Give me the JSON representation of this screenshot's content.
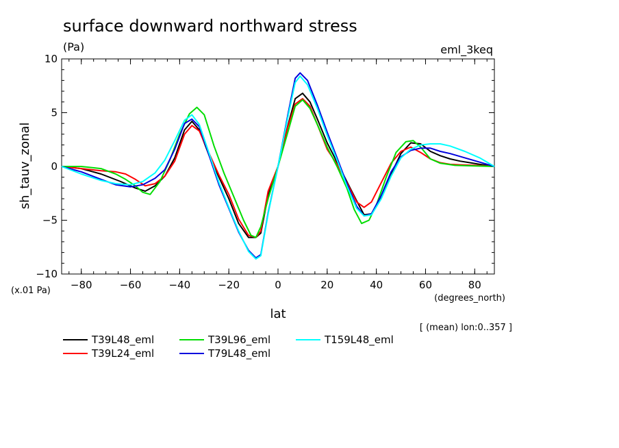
{
  "chart_data": {
    "type": "line",
    "title": "surface downward northward stress",
    "subtitle": "(Pa)",
    "dataset_label": "eml_3keq",
    "ylabel": "sh_tauv_zonal",
    "xlabel": "lat",
    "y_scale_note": "(x.01 Pa)",
    "x_units": "(degrees_north)",
    "region_note": "[ (mean) lon:0..357 ]",
    "xlim": [
      -88,
      88
    ],
    "ylim": [
      -10,
      10
    ],
    "x_ticks": [
      "-80",
      "-60",
      "-40",
      "-20",
      "0",
      "20",
      "40",
      "60",
      "80"
    ],
    "y_ticks": [
      "10",
      "5",
      "0",
      "-5",
      "-10"
    ],
    "x_tick_values": [
      -80,
      -60,
      -40,
      -20,
      0,
      20,
      40,
      60,
      80
    ],
    "y_tick_values": [
      10,
      5,
      0,
      -5,
      -10
    ],
    "x_minor_step": 5,
    "y_minor_step": 1,
    "grid": false,
    "legend_position": "bottom",
    "series": [
      {
        "name": "T39L48_eml",
        "color": "#000000",
        "x": [
          -88,
          -80,
          -72,
          -64,
          -58,
          -54,
          -50,
          -46,
          -42,
          -38,
          -35,
          -32,
          -28,
          -24,
          -20,
          -16,
          -12,
          -9,
          -7,
          -4,
          0,
          4,
          7,
          10,
          13,
          16,
          20,
          24,
          28,
          32,
          35,
          38,
          42,
          46,
          50,
          54,
          58,
          62,
          66,
          70,
          74,
          78,
          82,
          88
        ],
        "y": [
          0,
          -0.2,
          -0.7,
          -1.4,
          -2.0,
          -2.3,
          -1.8,
          -0.9,
          0.8,
          3.4,
          4.2,
          3.4,
          1.0,
          -1.0,
          -3.0,
          -5.3,
          -6.6,
          -6.6,
          -6.2,
          -2.7,
          0,
          3.8,
          6.3,
          6.8,
          6.0,
          4.4,
          2.2,
          0.4,
          -1.4,
          -3.2,
          -4.5,
          -4.4,
          -2.8,
          -0.7,
          1.2,
          2.2,
          2.1,
          1.4,
          1.0,
          0.7,
          0.5,
          0.35,
          0.2,
          0
        ]
      },
      {
        "name": "T39L24_eml",
        "color": "#ff0000",
        "x": [
          -88,
          -80,
          -72,
          -66,
          -62,
          -58,
          -54,
          -50,
          -46,
          -42,
          -38,
          -35,
          -32,
          -28,
          -24,
          -20,
          -16,
          -12,
          -9,
          -7,
          -4,
          0,
          4,
          7,
          10,
          13,
          16,
          20,
          24,
          28,
          32,
          35,
          38,
          42,
          46,
          50,
          54,
          58,
          62,
          66,
          70,
          74,
          80,
          88
        ],
        "y": [
          0,
          -0.2,
          -0.4,
          -0.5,
          -0.7,
          -1.2,
          -1.8,
          -1.6,
          -0.9,
          0.5,
          3.0,
          3.8,
          3.3,
          1.2,
          -0.8,
          -2.6,
          -4.9,
          -6.4,
          -6.6,
          -6.0,
          -2.3,
          0,
          3.7,
          5.8,
          6.3,
          5.6,
          3.9,
          1.6,
          0.2,
          -1.5,
          -3.3,
          -3.8,
          -3.3,
          -1.5,
          0.3,
          1.4,
          1.8,
          1.3,
          0.7,
          0.35,
          0.2,
          0.15,
          0.1,
          0
        ]
      },
      {
        "name": "T39L96_eml",
        "color": "#00dd00",
        "x": [
          -88,
          -80,
          -72,
          -66,
          -62,
          -58,
          -55,
          -52,
          -48,
          -44,
          -40,
          -36,
          -33,
          -30,
          -26,
          -22,
          -18,
          -14,
          -11,
          -9,
          -7,
          -4,
          0,
          4,
          7,
          10,
          13,
          16,
          20,
          24,
          28,
          31,
          34,
          37,
          40,
          44,
          48,
          52,
          55,
          58,
          62,
          66,
          72,
          80,
          88
        ],
        "y": [
          0,
          0,
          -0.2,
          -0.7,
          -1.2,
          -1.8,
          -2.4,
          -2.6,
          -1.4,
          0.6,
          3.0,
          4.9,
          5.5,
          4.8,
          1.9,
          -0.6,
          -2.8,
          -5.0,
          -6.4,
          -6.6,
          -5.6,
          -3.0,
          0,
          3.2,
          5.6,
          6.2,
          5.4,
          3.9,
          1.8,
          0.0,
          -2.0,
          -4.0,
          -5.3,
          -5.0,
          -3.6,
          -1.0,
          1.3,
          2.3,
          2.4,
          1.8,
          0.7,
          0.3,
          0.1,
          0.05,
          0
        ]
      },
      {
        "name": "T79L48_eml",
        "color": "#0000dd",
        "x": [
          -88,
          -80,
          -72,
          -66,
          -60,
          -55,
          -50,
          -46,
          -42,
          -38,
          -35,
          -32,
          -28,
          -24,
          -20,
          -16,
          -12,
          -9,
          -7,
          -4,
          0,
          4,
          7,
          9,
          12,
          16,
          20,
          24,
          28,
          32,
          35,
          38,
          42,
          46,
          50,
          54,
          58,
          62,
          66,
          70,
          76,
          82,
          88
        ],
        "y": [
          0,
          -0.5,
          -1.2,
          -1.7,
          -1.9,
          -1.7,
          -1.1,
          -0.3,
          1.6,
          4.0,
          4.4,
          3.7,
          1.0,
          -1.7,
          -3.9,
          -6.1,
          -7.8,
          -8.5,
          -8.2,
          -4.3,
          0,
          4.8,
          8.2,
          8.7,
          8.0,
          5.7,
          3.2,
          0.8,
          -1.6,
          -3.7,
          -4.6,
          -4.4,
          -2.7,
          -0.5,
          0.9,
          1.5,
          1.7,
          1.7,
          1.4,
          1.2,
          0.8,
          0.4,
          0
        ]
      },
      {
        "name": "T159L48_eml",
        "color": "#00ffff",
        "x": [
          -88,
          -80,
          -72,
          -66,
          -60,
          -55,
          -50,
          -46,
          -42,
          -38,
          -35,
          -32,
          -28,
          -24,
          -20,
          -16,
          -12,
          -9,
          -7,
          -4,
          0,
          4,
          7,
          9,
          12,
          16,
          20,
          24,
          28,
          32,
          35,
          38,
          42,
          46,
          50,
          54,
          58,
          62,
          66,
          70,
          76,
          82,
          88
        ],
        "y": [
          0,
          -0.7,
          -1.3,
          -1.6,
          -1.7,
          -1.4,
          -0.6,
          0.6,
          2.4,
          4.3,
          4.8,
          3.9,
          1.2,
          -1.5,
          -3.8,
          -6.0,
          -7.9,
          -8.6,
          -8.3,
          -4.4,
          0,
          4.6,
          7.8,
          8.4,
          7.6,
          5.4,
          2.9,
          0.6,
          -1.8,
          -3.9,
          -4.6,
          -4.5,
          -3.0,
          -0.9,
          0.8,
          1.6,
          2.0,
          2.1,
          2.1,
          1.9,
          1.4,
          0.8,
          0
        ]
      }
    ]
  }
}
